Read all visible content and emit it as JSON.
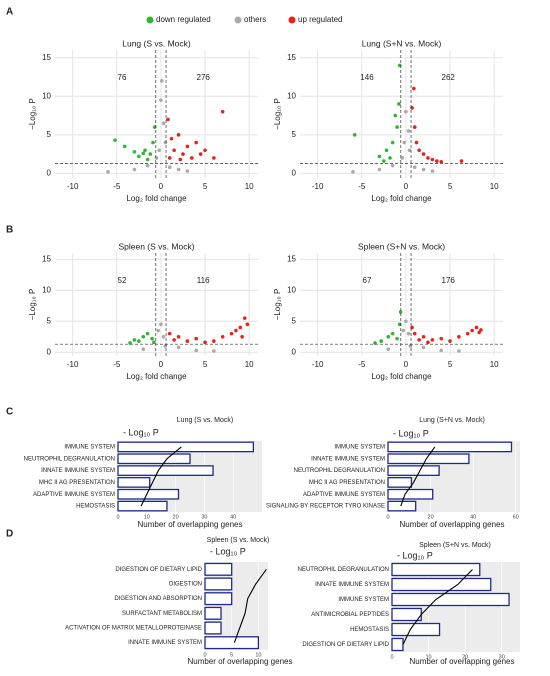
{
  "panel_labels": [
    "A",
    "B",
    "C",
    "D"
  ],
  "chart_data": [
    {
      "type": "volcano",
      "title": "Lung (S vs. Mock)",
      "x_label": "Log₂ fold change",
      "y_label": "−Log₁₀ P",
      "annotations": [
        "76",
        "276"
      ],
      "xlim": [
        -12,
        11
      ],
      "ylim": [
        -0.6,
        16
      ],
      "xticks": [
        -10,
        -5,
        0,
        5,
        10
      ],
      "yticks": [
        0,
        5,
        10,
        15
      ],
      "thresholds": {
        "x": [
          -0.58,
          0.58
        ],
        "y": 1.3
      },
      "grid": true,
      "series": [
        {
          "name": "down regulated",
          "color": "#2fb82f",
          "x": [
            -5.2,
            -4.1,
            -3.0,
            -2.5,
            -1.8,
            -1.2,
            -0.9,
            -0.7,
            -1.5,
            -2.0
          ],
          "values": [
            4.3,
            3.5,
            2.8,
            2.2,
            3.0,
            2.5,
            4.0,
            6.0,
            1.8,
            2.6
          ]
        },
        {
          "name": "others",
          "color": "#aaaaaa",
          "x": [
            -3,
            -1.5,
            -0.5,
            0,
            0.3,
            0.5,
            1,
            2,
            -0.2,
            0.1,
            3,
            -6
          ],
          "values": [
            0.5,
            1.0,
            2.0,
            9.5,
            6.5,
            4.0,
            0.8,
            0.5,
            3.0,
            12.0,
            0.3,
            0.2
          ]
        },
        {
          "name": "up regulated",
          "color": "#e3231c",
          "x": [
            0.8,
            1.2,
            1.5,
            2.0,
            2.5,
            3.0,
            3.5,
            4.0,
            4.5,
            5.0,
            6.0,
            7.0,
            1.0,
            2.2
          ],
          "values": [
            7.0,
            4.5,
            3.0,
            5.0,
            2.5,
            3.5,
            2.0,
            4.0,
            2.5,
            3.0,
            2.0,
            8.0,
            2.0,
            1.8
          ]
        }
      ]
    },
    {
      "type": "volcano",
      "title": "Lung (S+N vs. Mock)",
      "x_label": "Log₂ fold change",
      "y_label": "−Log₁₀ P",
      "annotations": [
        "146",
        "262"
      ],
      "xlim": [
        -12,
        11
      ],
      "ylim": [
        -0.6,
        16
      ],
      "xticks": [
        -10,
        -5,
        0,
        5,
        10
      ],
      "yticks": [
        0,
        5,
        10,
        15
      ],
      "thresholds": {
        "x": [
          -0.58,
          0.58
        ],
        "y": 1.3
      },
      "grid": true,
      "series": [
        {
          "name": "down regulated",
          "color": "#2fb82f",
          "x": [
            -5.8,
            -3.0,
            -2.2,
            -1.5,
            -1.0,
            -0.8,
            -0.7,
            -1.8,
            -2.5,
            -1.2
          ],
          "values": [
            5.0,
            2.2,
            3.0,
            4.0,
            6.0,
            9.0,
            14.0,
            2.0,
            1.6,
            7.5
          ]
        },
        {
          "name": "others",
          "color": "#aaaaaa",
          "x": [
            -3,
            -1.5,
            -0.4,
            0,
            0.3,
            0.4,
            1,
            2,
            -0.2,
            3,
            -6
          ],
          "values": [
            0.5,
            1.0,
            2.0,
            8.0,
            5.5,
            3.0,
            0.8,
            0.5,
            4.0,
            0.3,
            0.2
          ]
        },
        {
          "name": "up regulated",
          "color": "#e3231c",
          "x": [
            0.7,
            1.0,
            1.2,
            1.5,
            2.0,
            2.5,
            3.0,
            3.5,
            4.0,
            6.3,
            0.9
          ],
          "values": [
            8.5,
            6.0,
            4.0,
            3.0,
            2.5,
            2.0,
            1.8,
            1.6,
            1.5,
            1.6,
            11.0
          ]
        }
      ]
    },
    {
      "type": "volcano",
      "title": "Spleen (S vs. Mock)",
      "x_label": "Log₂ fold change",
      "y_label": "−Log₁₀ P",
      "annotations": [
        "52",
        "116"
      ],
      "xlim": [
        -12,
        11
      ],
      "ylim": [
        -0.6,
        16
      ],
      "xticks": [
        -10,
        -5,
        0,
        5,
        10
      ],
      "yticks": [
        0,
        5,
        10,
        15
      ],
      "thresholds": {
        "x": [
          -0.58,
          0.58
        ],
        "y": 1.3
      },
      "grid": true,
      "series": [
        {
          "name": "down regulated",
          "color": "#2fb82f",
          "x": [
            -3.5,
            -3.0,
            -2.5,
            -2.0,
            -1.5,
            -1.0,
            -0.8
          ],
          "values": [
            1.5,
            2.0,
            1.8,
            2.5,
            3.0,
            2.2,
            1.6
          ]
        },
        {
          "name": "others",
          "color": "#aaaaaa",
          "x": [
            0,
            0.3,
            -0.3,
            0.5,
            2,
            -2,
            4,
            6
          ],
          "values": [
            4.5,
            2.5,
            3.5,
            1.0,
            0.8,
            0.5,
            0.3,
            0.2
          ]
        },
        {
          "name": "up regulated",
          "color": "#e3231c",
          "x": [
            1,
            1.5,
            2,
            3,
            4,
            5,
            6,
            7,
            8,
            9,
            9.5,
            9.8,
            8.5,
            9.2
          ],
          "values": [
            3.0,
            2.0,
            2.5,
            1.8,
            2.2,
            1.6,
            1.8,
            2.5,
            3.0,
            4.0,
            5.5,
            4.5,
            3.5,
            2.5
          ]
        }
      ]
    },
    {
      "type": "volcano",
      "title": "Spleen (S+N vs. Mock)",
      "x_label": "Log₂ fold change",
      "y_label": "−Log₁₀ P",
      "annotations": [
        "67",
        "176"
      ],
      "xlim": [
        -12,
        11
      ],
      "ylim": [
        -0.6,
        16
      ],
      "xticks": [
        -10,
        -5,
        0,
        5,
        10
      ],
      "yticks": [
        0,
        5,
        10,
        15
      ],
      "thresholds": {
        "x": [
          -0.58,
          0.58
        ],
        "y": 1.3
      },
      "grid": true,
      "series": [
        {
          "name": "down regulated",
          "color": "#2fb82f",
          "x": [
            -3.5,
            -2.8,
            -2.0,
            -1.5,
            -1.0,
            -0.7,
            -0.6
          ],
          "values": [
            1.5,
            1.8,
            2.5,
            3.0,
            2.2,
            4.5,
            6.5
          ]
        },
        {
          "name": "others",
          "color": "#aaaaaa",
          "x": [
            0,
            0.3,
            -0.3,
            0.5,
            2,
            -2,
            4,
            6
          ],
          "values": [
            5.0,
            3.0,
            3.5,
            1.0,
            0.8,
            0.5,
            0.3,
            0.2
          ]
        },
        {
          "name": "up regulated",
          "color": "#e3231c",
          "x": [
            0.7,
            1,
            2,
            3,
            4,
            5,
            6,
            7,
            7.5,
            8,
            8.3,
            8.5,
            2.5,
            1.5
          ],
          "values": [
            4.0,
            3.0,
            2.5,
            2.0,
            2.2,
            1.8,
            2.5,
            3.0,
            3.5,
            4.0,
            3.2,
            3.6,
            1.6,
            2.0
          ]
        }
      ]
    },
    {
      "type": "bar",
      "title": "Lung (S vs. Mock)",
      "line_label": "- Log₁₀ P",
      "x_label": "Number of overlapping genes",
      "categories": [
        "IMMUNE SYSTEM",
        "NEUTROPHIL DEGRANULATION",
        "INNATE IMMUNE SYSTEM",
        "MHC II AG PRESENTATION",
        "ADAPTIVE IMMUNE SYSTEM",
        "HEMOSTASIS"
      ],
      "values": [
        47,
        25,
        33,
        11,
        21,
        17
      ],
      "line_values": [
        22,
        17,
        14,
        12,
        10,
        8
      ],
      "color": "#1f2a8a",
      "xlim": [
        0,
        50
      ],
      "xticks": [
        0,
        10,
        20,
        30,
        40
      ]
    },
    {
      "type": "bar",
      "title": "Lung (S+N vs. Mock)",
      "line_label": "- Log₁₀ P",
      "x_label": "Number of overlapping genes",
      "categories": [
        "IMMUNE SYSTEM",
        "INNATE IMMUNE SYSTEM",
        "NEUTROPHIL DEGRANULATION",
        "MHC II AG PRESENTATION",
        "ADAPTIVE IMMUNE SYSTEM",
        "SIGNALING BY RECEPTOR TYRO KINASE"
      ],
      "values": [
        58,
        38,
        24,
        11,
        21,
        13
      ],
      "line_values": [
        22,
        18,
        15,
        12,
        8,
        6
      ],
      "color": "#1f2a8a",
      "xlim": [
        0,
        62
      ],
      "xticks": [
        0,
        20,
        40,
        60
      ]
    },
    {
      "type": "bar",
      "title": "Spleen (S vs. Mock)",
      "line_label": "- Log₁₀ P",
      "x_label": "Number of overlapping genes",
      "categories": [
        "DIGESTION OF DIETARY LIPID",
        "DIGESTION",
        "DIGESTION AND ABSORPTION",
        "SURFACTANT METABOLISM",
        "ACTIVATION OF MATRIX METALLOPROTEINASE",
        "INNATE IMMUNE SYSTEM"
      ],
      "values": [
        5,
        5,
        5,
        3,
        3,
        10
      ],
      "line_values": [
        11.5,
        9.5,
        8,
        7.5,
        6.5,
        5.5
      ],
      "color": "#1f2a8a",
      "xlim": [
        0,
        11.8
      ],
      "xticks": [
        0,
        5,
        10
      ]
    },
    {
      "type": "bar",
      "title": "Spleen (S+N vs. Mock)",
      "line_label": "- Log₁₀ P",
      "x_label": "Number of overlapping genes",
      "categories": [
        "NEUTROPHIL DEGRANULATION",
        "INNATE IMMUNE SYSTEM",
        "IMMUNE SYSTEM",
        "ANTIMICROBIAL PEPTIDES",
        "HEMOSTASIS",
        "DIGESTION OF DIETARY LIPID"
      ],
      "values": [
        24,
        27,
        32,
        8,
        13,
        3
      ],
      "line_values": [
        22,
        18,
        12,
        8,
        5,
        3
      ],
      "color": "#1f2a8a",
      "xlim": [
        0,
        35
      ],
      "xticks": [
        0,
        10,
        20,
        30
      ]
    }
  ]
}
